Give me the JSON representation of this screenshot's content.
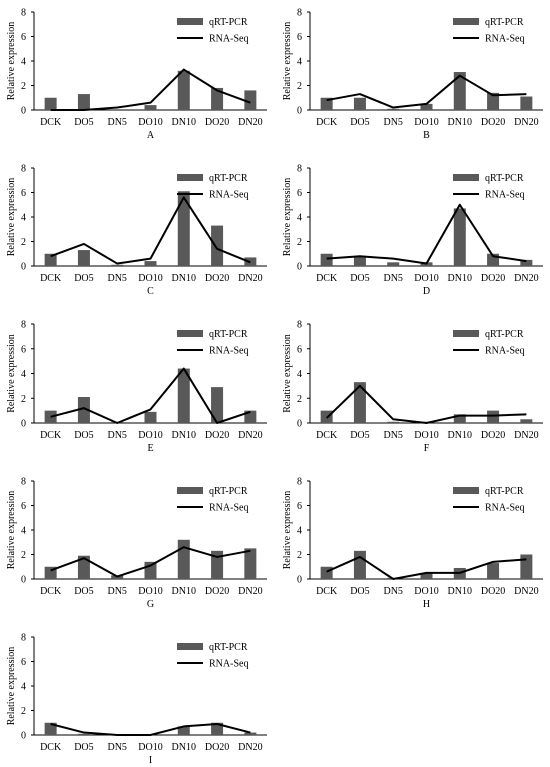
{
  "chart_data": [
    {
      "type": "bar",
      "panel": "A",
      "categories": [
        "DCK",
        "DO5",
        "DN5",
        "DO10",
        "DN10",
        "DO20",
        "DN20"
      ],
      "ylabel": "Relative expression",
      "ylim": [
        0,
        8
      ],
      "yticks": [
        0,
        2,
        4,
        6,
        8
      ],
      "legend": {
        "placement": "top-right",
        "entries": [
          "qRT-PCR",
          "RNA-Seq"
        ]
      },
      "series": [
        {
          "name": "qRT-PCR",
          "type": "bar",
          "values": [
            1.0,
            1.3,
            0,
            0.4,
            3.2,
            1.8,
            1.6
          ]
        },
        {
          "name": "RNA-Seq",
          "type": "line",
          "values": [
            0.0,
            0.0,
            0.2,
            0.6,
            3.3,
            1.6,
            0.6
          ]
        }
      ]
    },
    {
      "type": "bar",
      "panel": "B",
      "categories": [
        "DCK",
        "DO5",
        "DN5",
        "DO10",
        "DN10",
        "DO20",
        "DN20"
      ],
      "ylabel": "Relative expression",
      "ylim": [
        0,
        8
      ],
      "yticks": [
        0,
        2,
        4,
        6,
        8
      ],
      "legend": {
        "placement": "top-right",
        "entries": [
          "qRT-PCR",
          "RNA-Seq"
        ]
      },
      "series": [
        {
          "name": "qRT-PCR",
          "type": "bar",
          "values": [
            1.0,
            1.0,
            0.1,
            0.5,
            3.1,
            1.4,
            1.1
          ]
        },
        {
          "name": "RNA-Seq",
          "type": "line",
          "values": [
            0.8,
            1.3,
            0.2,
            0.5,
            2.8,
            1.2,
            1.3
          ]
        }
      ]
    },
    {
      "type": "bar",
      "panel": "C",
      "categories": [
        "DCK",
        "DO5",
        "DN5",
        "DO10",
        "DN10",
        "DO20",
        "DN20"
      ],
      "ylabel": "Relative expression",
      "ylim": [
        0,
        8
      ],
      "yticks": [
        0,
        2,
        4,
        6,
        8
      ],
      "legend": {
        "placement": "top-right",
        "entries": [
          "qRT-PCR",
          "RNA-Seq"
        ]
      },
      "series": [
        {
          "name": "qRT-PCR",
          "type": "bar",
          "values": [
            1.0,
            1.3,
            0.1,
            0.4,
            6.1,
            3.3,
            0.7
          ]
        },
        {
          "name": "RNA-Seq",
          "type": "line",
          "values": [
            0.8,
            1.8,
            0.2,
            0.6,
            5.6,
            1.4,
            0.3
          ]
        }
      ]
    },
    {
      "type": "bar",
      "panel": "D",
      "categories": [
        "DCK",
        "DO5",
        "DN5",
        "DO10",
        "DN10",
        "DO20",
        "DN20"
      ],
      "ylabel": "Relative expression",
      "ylim": [
        0,
        8
      ],
      "yticks": [
        0,
        2,
        4,
        6,
        8
      ],
      "legend": {
        "placement": "top-right",
        "entries": [
          "qRT-PCR",
          "RNA-Seq"
        ]
      },
      "series": [
        {
          "name": "qRT-PCR",
          "type": "bar",
          "values": [
            1.0,
            0.8,
            0.3,
            0.3,
            4.7,
            1.0,
            0.5
          ]
        },
        {
          "name": "RNA-Seq",
          "type": "line",
          "values": [
            0.6,
            0.8,
            0.6,
            0.2,
            5.0,
            0.8,
            0.4
          ]
        }
      ]
    },
    {
      "type": "bar",
      "panel": "E",
      "categories": [
        "DCK",
        "DO5",
        "DN5",
        "DO10",
        "DN10",
        "DO20",
        "DN20"
      ],
      "ylabel": "Relative expression",
      "ylim": [
        0,
        8
      ],
      "yticks": [
        0,
        2,
        4,
        6,
        8
      ],
      "legend": {
        "placement": "top-right",
        "entries": [
          "qRT-PCR",
          "RNA-Seq"
        ]
      },
      "series": [
        {
          "name": "qRT-PCR",
          "type": "bar",
          "values": [
            1.0,
            2.1,
            0.1,
            0.9,
            4.4,
            2.9,
            1.0
          ]
        },
        {
          "name": "RNA-Seq",
          "type": "line",
          "values": [
            0.5,
            1.2,
            0.0,
            1.1,
            4.4,
            0.0,
            0.9
          ]
        }
      ]
    },
    {
      "type": "bar",
      "panel": "F",
      "categories": [
        "DCK",
        "DO5",
        "DN5",
        "DO10",
        "DN10",
        "DO20",
        "DN20"
      ],
      "ylabel": "Relative expression",
      "ylim": [
        0,
        8
      ],
      "yticks": [
        0,
        2,
        4,
        6,
        8
      ],
      "legend": {
        "placement": "top-right",
        "entries": [
          "qRT-PCR",
          "RNA-Seq"
        ]
      },
      "series": [
        {
          "name": "qRT-PCR",
          "type": "bar",
          "values": [
            1.0,
            3.3,
            0.1,
            0.1,
            0.7,
            1.0,
            0.3
          ]
        },
        {
          "name": "RNA-Seq",
          "type": "line",
          "values": [
            0.4,
            3.0,
            0.3,
            0.0,
            0.6,
            0.6,
            0.7
          ]
        }
      ]
    },
    {
      "type": "bar",
      "panel": "G",
      "categories": [
        "DCK",
        "DO5",
        "DN5",
        "DO10",
        "DN10",
        "DO20",
        "DN20"
      ],
      "ylabel": "Relative expression",
      "ylim": [
        0,
        8
      ],
      "yticks": [
        0,
        2,
        4,
        6,
        8
      ],
      "legend": {
        "placement": "top-right",
        "entries": [
          "qRT-PCR",
          "RNA-Seq"
        ]
      },
      "series": [
        {
          "name": "qRT-PCR",
          "type": "bar",
          "values": [
            1.0,
            1.9,
            0.3,
            1.4,
            3.2,
            2.3,
            2.5
          ]
        },
        {
          "name": "RNA-Seq",
          "type": "line",
          "values": [
            0.7,
            1.7,
            0.2,
            1.1,
            2.6,
            1.8,
            2.3
          ]
        }
      ]
    },
    {
      "type": "bar",
      "panel": "H",
      "categories": [
        "DCK",
        "DO5",
        "DN5",
        "DO10",
        "DN10",
        "DO20",
        "DN20"
      ],
      "ylabel": "Relative expression",
      "ylim": [
        0,
        8
      ],
      "yticks": [
        0,
        2,
        4,
        6,
        8
      ],
      "legend": {
        "placement": "top-right",
        "entries": [
          "qRT-PCR",
          "RNA-Seq"
        ]
      },
      "series": [
        {
          "name": "qRT-PCR",
          "type": "bar",
          "values": [
            1.0,
            2.3,
            0.1,
            0.5,
            0.9,
            1.3,
            2.0
          ]
        },
        {
          "name": "RNA-Seq",
          "type": "line",
          "values": [
            0.6,
            1.8,
            0.0,
            0.5,
            0.5,
            1.4,
            1.6
          ]
        }
      ]
    },
    {
      "type": "bar",
      "panel": "I",
      "categories": [
        "DCK",
        "DO5",
        "DN5",
        "DO10",
        "DN10",
        "DO20",
        "DN20"
      ],
      "ylabel": "Relative expression",
      "ylim": [
        0,
        8
      ],
      "yticks": [
        0,
        2,
        4,
        6,
        8
      ],
      "legend": {
        "placement": "top-right",
        "entries": [
          "qRT-PCR",
          "RNA-Seq"
        ]
      },
      "series": [
        {
          "name": "qRT-PCR",
          "type": "bar",
          "values": [
            1.0,
            0.1,
            0.0,
            0.0,
            0.7,
            1.0,
            0.2
          ]
        },
        {
          "name": "RNA-Seq",
          "type": "line",
          "values": [
            0.9,
            0.2,
            0.0,
            0.0,
            0.7,
            0.9,
            0.2
          ]
        }
      ]
    }
  ],
  "colors": {
    "bar": "#595959",
    "line": "#000000",
    "axis": "#000000",
    "text": "#000000"
  }
}
